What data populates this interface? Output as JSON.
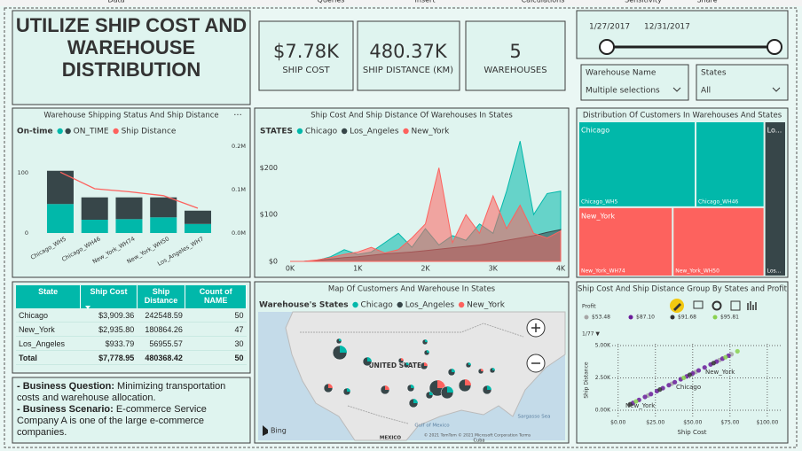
{
  "ribbon": [
    "Data",
    "Queries",
    "Insert",
    "Calculations",
    "Sensitivity",
    "Share"
  ],
  "header": {
    "title": "UTILIZE SHIP COST AND WAREHOUSE DISTRIBUTION"
  },
  "kpis": [
    {
      "value": "$7.78K",
      "label": "SHIP COST"
    },
    {
      "value": "480.37K",
      "label": "SHIP DISTANCE (KM)"
    },
    {
      "value": "5",
      "label": "WAREHOUSES"
    }
  ],
  "date_slicer": {
    "start": "1/27/2017",
    "end": "12/31/2017"
  },
  "filters": [
    {
      "label": "Warehouse Name",
      "value": "Multiple selections"
    },
    {
      "label": "States",
      "value": "All"
    }
  ],
  "chart_data": [
    {
      "type": "bar-line",
      "title": "Warehouse Shipping Status And Ship Distance",
      "legend_title": "On-time",
      "categories": [
        "Chicago_WH5",
        "Chicago_WH46",
        "New_York_WH74",
        "New_York_WH50",
        "Los_Angeles_WH7"
      ],
      "series": [
        {
          "name": null,
          "color": "#01b8aa",
          "values": [
            48,
            22,
            23,
            26,
            15
          ]
        },
        {
          "name": "ON_TIME",
          "color": "#374649",
          "values": [
            55,
            37,
            36,
            33,
            22
          ]
        },
        {
          "name": "Ship Distance",
          "color": "#fd625e",
          "type": "line",
          "axis": "y2",
          "values": [
            140000,
            102000,
            95000,
            86000,
            57000
          ]
        }
      ],
      "stacked": true,
      "ylim": [
        0,
        151
      ],
      "yticks": [
        0,
        100
      ],
      "y2lim": [
        0,
        210000
      ],
      "y2ticks": [
        {
          "value": 0,
          "label": "0.0M"
        },
        {
          "value": 100000,
          "label": "0.1M"
        },
        {
          "value": 200000,
          "label": "0.2M"
        }
      ]
    },
    {
      "type": "area",
      "title": "Ship Cost And Ship Distance Of Warehouses In States",
      "legend_title": "STATES",
      "x": [
        0,
        200,
        400,
        600,
        800,
        1000,
        1200,
        1400,
        1600,
        1800,
        2000,
        2200,
        2400,
        2600,
        2800,
        3000,
        3200,
        3400,
        3600,
        3800,
        4000
      ],
      "series": [
        {
          "name": "Chicago",
          "color": "#01b8aa",
          "values": [
            0,
            0,
            2,
            10,
            25,
            15,
            20,
            40,
            60,
            30,
            70,
            35,
            55,
            45,
            80,
            60,
            150,
            257,
            100,
            145,
            150
          ]
        },
        {
          "name": "Los_Angeles",
          "color": "#374649",
          "values": [
            0,
            0,
            2,
            5,
            8,
            10,
            13,
            16,
            18,
            20,
            23,
            26,
            29,
            32,
            35,
            40,
            45,
            50,
            55,
            62,
            68
          ]
        },
        {
          "name": "New_York",
          "color": "#fd625e",
          "values": [
            0,
            0,
            3,
            8,
            15,
            20,
            30,
            18,
            25,
            50,
            80,
            200,
            40,
            100,
            60,
            140,
            70,
            120,
            60,
            50,
            65
          ]
        }
      ],
      "xlim": [
        0,
        4000
      ],
      "xticks": [
        {
          "value": 0,
          "label": "0K"
        },
        {
          "value": 1000,
          "label": "1K"
        },
        {
          "value": 2000,
          "label": "2K"
        },
        {
          "value": 3000,
          "label": "3K"
        },
        {
          "value": 4000,
          "label": "4K"
        }
      ],
      "ylim": [
        0,
        265
      ],
      "yticks": [
        {
          "value": 0,
          "label": "$0"
        },
        {
          "value": 100,
          "label": "$100"
        },
        {
          "value": 200,
          "label": "$200"
        }
      ]
    },
    {
      "type": "treemap",
      "title": "Distribution Of Customers In Warehouses And States",
      "groups": [
        {
          "name": "Chicago",
          "color": "#01b8aa",
          "children": [
            {
              "name": "Chicago_WH5",
              "value": 114
            },
            {
              "name": "Chicago_WH46",
              "value": 67
            }
          ]
        },
        {
          "name": "New_York",
          "color": "#fd625e",
          "children": [
            {
              "name": "New_York_WH74",
              "value": 74
            },
            {
              "name": "New_York_WH50",
              "value": 72
            }
          ]
        },
        {
          "name": "Lo...",
          "color": "#374649",
          "children": [
            {
              "name": "Los...",
              "value": 38
            }
          ]
        }
      ]
    },
    {
      "type": "scatter",
      "title": "Ship Cost And Ship Distance Group By States and Profit",
      "legend_title": "Profit",
      "legend_more": "1/77 ▼",
      "xlabel": "Ship Cost",
      "ylabel": "Ship Distance",
      "series": [
        {
          "name": "$53.48",
          "color": "#a6a6a6",
          "x": [
            20,
            36,
            52,
            68,
            76
          ],
          "values": [
            1140,
            2050,
            2960,
            3880,
            4330
          ]
        },
        {
          "name": "$87.10",
          "color": "#6a1b9a",
          "x": [
            10,
            14,
            18,
            22,
            26,
            30,
            34,
            38,
            42,
            46,
            50,
            54,
            58,
            62,
            66,
            70,
            74
          ],
          "values": [
            570,
            800,
            1030,
            1250,
            1480,
            1710,
            1940,
            2170,
            2400,
            2620,
            2850,
            3080,
            3310,
            3540,
            3760,
            3990,
            4220
          ]
        },
        {
          "name": "$91.68",
          "color": "#333333",
          "x": [
            8,
            28,
            48,
            64
          ],
          "values": [
            460,
            1600,
            2740,
            3650
          ]
        },
        {
          "name": "$95.81",
          "color": "#8ad14f",
          "x": [
            12,
            44,
            72,
            80
          ],
          "values": [
            680,
            2510,
            4100,
            4560
          ]
        }
      ],
      "point_labels": [
        "New_York",
        "Chicago",
        "New_York"
      ],
      "xlim": [
        -4,
        109
      ],
      "xticks": [
        {
          "value": 0,
          "label": "$0.00"
        },
        {
          "value": 25,
          "label": "$25.00"
        },
        {
          "value": 50,
          "label": "$50.00"
        },
        {
          "value": 75,
          "label": "$75.00"
        },
        {
          "value": 100,
          "label": "$100.00"
        }
      ],
      "ylim": [
        -480,
        5140
      ],
      "yticks": [
        {
          "value": 0,
          "label": "0.00K"
        },
        {
          "value": 2500,
          "label": "2.50K"
        },
        {
          "value": 5000,
          "label": "5.00K"
        }
      ],
      "grid": true
    }
  ],
  "table": {
    "columns": [
      "State",
      "Ship Cost",
      "Ship Distance",
      "Count of NAME"
    ],
    "rows": [
      [
        "Chicago",
        "$3,909.36",
        "242548.59",
        "50"
      ],
      [
        "New_York",
        "$2,935.80",
        "180864.26",
        "47"
      ],
      [
        "Los_Angeles",
        "$933.79",
        "56955.57",
        "30"
      ]
    ],
    "total": [
      "Total",
      "$7,778.95",
      "480368.42",
      "50"
    ]
  },
  "map": {
    "title": "Map Of Customers And Warehouse In States",
    "legend_title": "Warehouse's States",
    "legend": [
      {
        "name": "Chicago",
        "color": "#01b8aa"
      },
      {
        "name": "Los_Angeles",
        "color": "#374649"
      },
      {
        "name": "New_York",
        "color": "#fd625e"
      }
    ],
    "labels": {
      "country": "UNITED STATES",
      "mexico": "MEXICO",
      "gulf": "Gulf of Mexico",
      "sea": "Sargasso Sea",
      "cuba": "Cuba",
      "provider": "Bing",
      "copyright": "© 2021 TomTom © 2021 Microsoft Corporation Terms"
    }
  },
  "notes": [
    {
      "label": "- Business Question:",
      "text": "Minimizing transportation costs and warehouse allocation."
    },
    {
      "label": "- Business Scenario:",
      "text": "E-commerce Service Company A is one of the large e-commerce companies."
    }
  ]
}
